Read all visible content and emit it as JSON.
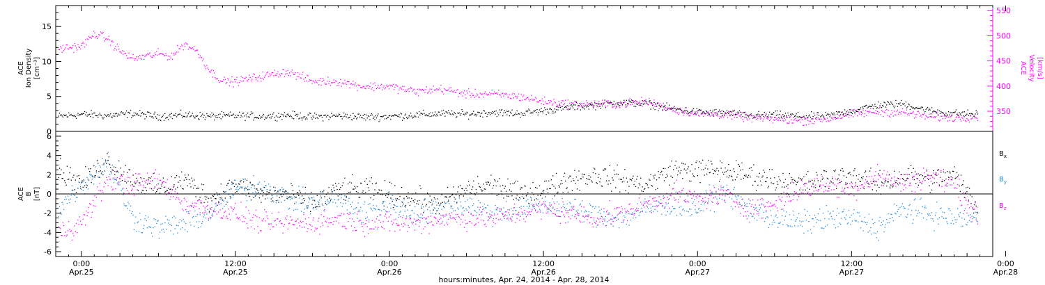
{
  "colors": {
    "black": "#000000",
    "magenta": "#ff00ff",
    "blue": "#1f8ae0",
    "axis": "#000000"
  },
  "time_axis": {
    "label": "hours:minutes, Apr. 24, 2014 - Apr. 28, 2014",
    "range_hours": [
      -2.0,
      71.0
    ],
    "ticks": [
      {
        "hour": 0,
        "time": "0:00",
        "date": "Apr.25"
      },
      {
        "hour": 12,
        "time": "12:00",
        "date": "Apr.25"
      },
      {
        "hour": 24,
        "time": "0:00",
        "date": "Apr.26"
      },
      {
        "hour": 36,
        "time": "12:00",
        "date": "Apr.26"
      },
      {
        "hour": 48,
        "time": "0:00",
        "date": "Apr.27"
      },
      {
        "hour": 60,
        "time": "12:00",
        "date": "Apr.27"
      },
      {
        "hour": 72,
        "time": "0:00",
        "date": "Apr.28"
      }
    ]
  },
  "chart_data": [
    {
      "type": "scatter",
      "panel": "density-velocity",
      "left_axis": {
        "label_lines": [
          "ACE",
          "Ion Density",
          "[cm⁻³]"
        ],
        "ylim": [
          0,
          18
        ],
        "ticks": [
          0,
          5,
          10,
          15
        ]
      },
      "right_axis": {
        "label_lines": [
          "ACE",
          "Velocity",
          "[km/s]"
        ],
        "ylim": [
          310,
          560
        ],
        "ticks": [
          350,
          400,
          450,
          500,
          550
        ]
      },
      "series": [
        {
          "name": "Ion Density",
          "axis": "left",
          "color": "#000000",
          "x": [
            -1.8,
            0,
            2,
            4,
            6,
            8,
            10,
            12,
            14,
            16,
            18,
            20,
            22,
            24,
            26,
            28,
            30,
            32,
            34,
            36,
            38,
            40,
            42,
            44,
            46,
            48,
            50,
            52,
            54,
            56,
            58,
            60,
            62,
            64,
            66,
            68,
            69.8
          ],
          "y": [
            2.2,
            2.5,
            2.3,
            2.6,
            2.2,
            2.4,
            2.2,
            2.3,
            2.2,
            2.4,
            2.1,
            2.3,
            2.1,
            2.2,
            2.4,
            2.6,
            2.5,
            2.8,
            2.6,
            3.0,
            3.5,
            3.8,
            4.2,
            4.0,
            3.3,
            2.8,
            2.7,
            2.3,
            2.4,
            2.2,
            2.2,
            3.0,
            3.8,
            4.0,
            3.0,
            2.6,
            2.5
          ],
          "spread": 0.45
        },
        {
          "name": "Velocity",
          "axis": "right",
          "color": "#ff00ff",
          "x": [
            -1.8,
            0,
            1,
            2,
            3,
            4,
            6,
            7,
            8,
            9,
            10,
            11,
            12,
            14,
            16,
            18,
            20,
            22,
            24,
            26,
            28,
            30,
            32,
            34,
            36,
            38,
            40,
            42,
            44,
            46,
            48,
            50,
            52,
            54,
            56,
            58,
            60,
            62,
            64,
            66,
            68,
            69.8
          ],
          "y": [
            475,
            480,
            505,
            495,
            470,
            455,
            465,
            460,
            485,
            470,
            430,
            410,
            410,
            420,
            430,
            410,
            410,
            400,
            400,
            390,
            395,
            385,
            385,
            380,
            370,
            365,
            365,
            365,
            370,
            355,
            345,
            345,
            338,
            335,
            332,
            335,
            345,
            350,
            348,
            340,
            338,
            340
          ],
          "spread": 7
        }
      ]
    },
    {
      "type": "scatter",
      "panel": "magnetic-field",
      "left_axis": {
        "label_lines": [
          "ACE",
          "B",
          "[nT]"
        ],
        "ylim": [
          -6.5,
          6.5
        ],
        "ticks": [
          -6,
          -4,
          -2,
          0,
          2,
          4,
          6
        ]
      },
      "zero_line": true,
      "series": [
        {
          "name": "Bx",
          "legend_main": "B",
          "legend_sub": "x",
          "color": "#000000",
          "x": [
            -1.8,
            0,
            2,
            4,
            6,
            8,
            10,
            12,
            14,
            16,
            18,
            20,
            22,
            24,
            26,
            28,
            30,
            32,
            34,
            36,
            38,
            40,
            42,
            44,
            46,
            48,
            50,
            52,
            54,
            56,
            58,
            60,
            62,
            64,
            66,
            68,
            69.8
          ],
          "y": [
            2.5,
            1.0,
            3.5,
            1.5,
            0.5,
            1.5,
            -0.5,
            1.0,
            0,
            0,
            -1.0,
            0.5,
            0.5,
            0,
            -0.5,
            -1.0,
            0.5,
            1.0,
            0,
            0.5,
            1.5,
            2.0,
            1.5,
            1.0,
            2.5,
            2.5,
            2.5,
            2.0,
            1.5,
            1.0,
            1.5,
            2.0,
            1.0,
            2.0,
            1.5,
            2.0,
            -1.5
          ],
          "spread": 1.0
        },
        {
          "name": "By",
          "legend_main": "B",
          "legend_sub": "y",
          "color": "#1f8ae0",
          "x": [
            -1.8,
            0,
            2,
            4,
            6,
            8,
            10,
            12,
            14,
            16,
            18,
            20,
            22,
            24,
            26,
            28,
            30,
            32,
            34,
            36,
            38,
            40,
            42,
            44,
            46,
            48,
            50,
            52,
            54,
            56,
            58,
            60,
            62,
            64,
            66,
            68,
            69.8
          ],
          "y": [
            -1.5,
            1.0,
            3.5,
            -2.5,
            -3.5,
            -3.0,
            -2.0,
            0.5,
            1.0,
            -0.5,
            -1.0,
            -0.5,
            -2.0,
            -1.0,
            -2.0,
            -1.5,
            -1.0,
            -2.0,
            -1.5,
            -1.0,
            -1.5,
            -2.0,
            -2.5,
            -1.5,
            -1.0,
            -1.5,
            0.5,
            -1.5,
            -2.5,
            -3.0,
            -2.5,
            -2.5,
            -3.5,
            -1.5,
            -2.0,
            -2.5,
            -2.5
          ],
          "spread": 1.0
        },
        {
          "name": "Bz",
          "legend_main": "B",
          "legend_sub": "z",
          "color": "#ff00ff",
          "x": [
            -1.8,
            0,
            2,
            4,
            6,
            8,
            10,
            12,
            14,
            16,
            18,
            20,
            22,
            24,
            26,
            28,
            30,
            32,
            34,
            36,
            38,
            40,
            42,
            44,
            46,
            48,
            50,
            52,
            54,
            56,
            58,
            60,
            62,
            64,
            66,
            68,
            69.8
          ],
          "y": [
            -4.0,
            -3.0,
            1.5,
            1.0,
            1.5,
            -1.0,
            -1.5,
            -2.0,
            -3.0,
            -3.0,
            -3.0,
            -2.5,
            -3.0,
            -3.0,
            -3.0,
            -2.5,
            -2.5,
            -2.5,
            -2.0,
            -1.5,
            -2.0,
            -2.5,
            -2.0,
            -1.0,
            0,
            -0.5,
            0,
            -1.5,
            -1.0,
            0.5,
            1.0,
            0.5,
            2.0,
            1.0,
            2.0,
            1.0,
            -2.5
          ],
          "spread": 0.9
        }
      ]
    }
  ]
}
